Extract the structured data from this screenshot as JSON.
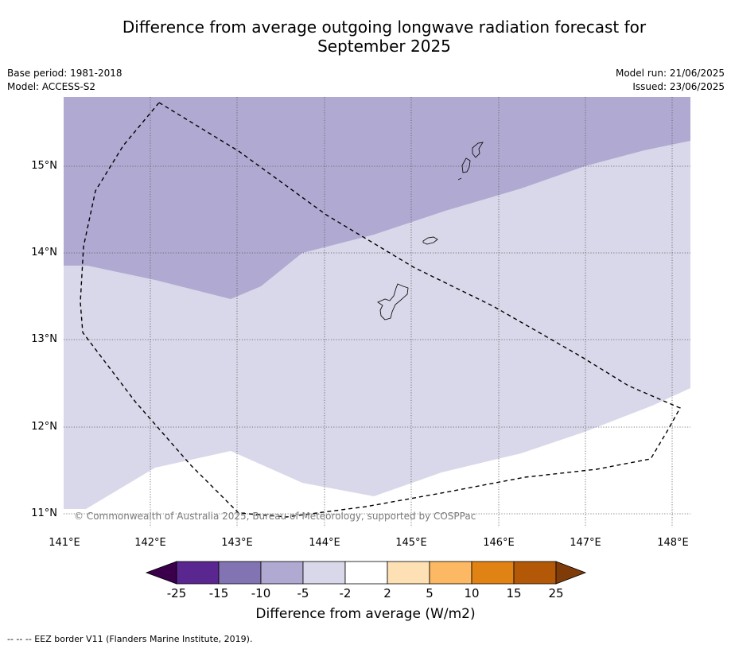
{
  "title_line1": "Difference from average outgoing longwave radiation forecast for",
  "title_line2": "September 2025",
  "meta_left": [
    "Base period: 1981-2018",
    "Model: ACCESS-S2"
  ],
  "meta_right": [
    "Model run: 21/06/2025",
    "Issued: 23/06/2025"
  ],
  "map": {
    "lon_range": [
      141.0,
      148.2
    ],
    "lat_range": [
      10.75,
      15.8
    ],
    "lon_ticks": [
      "141°E",
      "142°E",
      "143°E",
      "144°E",
      "145°E",
      "146°E",
      "147°E",
      "148°E"
    ],
    "lat_ticks": [
      "15°N",
      "14°N",
      "13°N",
      "12°N",
      "11°N"
    ],
    "gridlines": true,
    "regions": [
      {
        "category": "-10 to -5",
        "color": "#b0aad2"
      },
      {
        "category": "-5 to -2",
        "color": "#d8d8ea"
      },
      {
        "category": "-2 to 2",
        "color": "#ffffff"
      }
    ],
    "copyright": "© Commonwealth of Australia 2025, Bureau of Meteorology, supported by COSPPac"
  },
  "colorbar": {
    "ticks": [
      "-25",
      "-15",
      "-10",
      "-5",
      "-2",
      "2",
      "5",
      "10",
      "15",
      "25"
    ],
    "colors": [
      "#5a2690",
      "#8274b2",
      "#b0aad2",
      "#d8d8ea",
      "#ffffff",
      "#fde0b3",
      "#fdb863",
      "#e08214",
      "#b35806"
    ],
    "low_extension_color": "#3a004c",
    "high_extension_color": "#7f3b08",
    "label": "Difference from average (W/m2)"
  },
  "footer": "--  --  -- EEZ border V11 (Flanders Marine Institute, 2019)."
}
